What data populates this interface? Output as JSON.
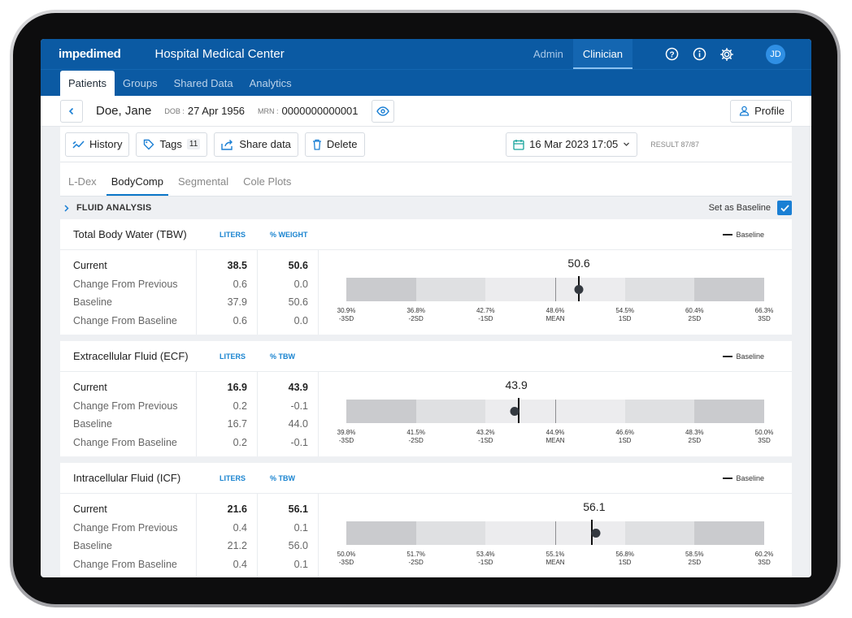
{
  "app": {
    "logo": "impedimed",
    "org": "Hospital Medical Center",
    "roles": [
      "Admin",
      "Clinician"
    ],
    "active_role": "Clinician",
    "avatar_initials": "JD",
    "accent": "#0b5aa3"
  },
  "nav": {
    "tabs": [
      "Patients",
      "Groups",
      "Shared Data",
      "Analytics"
    ],
    "active": "Patients"
  },
  "patient": {
    "name": "Doe, Jane",
    "dob_label": "DOB :",
    "dob": "27 Apr 1956",
    "mrn_label": "MRN :",
    "mrn": "0000000000001",
    "profile_label": "Profile"
  },
  "toolbar": {
    "history": "History",
    "tags": "Tags",
    "tags_count": "11",
    "share": "Share data",
    "delete": "Delete",
    "date": "16 Mar 2023 17:05",
    "result": "RESULT 87/87"
  },
  "subtabs": [
    "L-Dex",
    "BodyComp",
    "Segmental",
    "Cole Plots"
  ],
  "subtab_active": "BodyComp",
  "fluid": {
    "title": "FLUID ANALYSIS",
    "baseline_label": "Set as Baseline",
    "baseline_checked": true
  },
  "row_labels": [
    "Current",
    "Change From Previous",
    "Baseline",
    "Change From Baseline"
  ],
  "legend_label": "Baseline",
  "cards": [
    {
      "title": "Total Body Water (TBW)",
      "col1": "LITERS",
      "col2": "% WEIGHT",
      "v1": [
        "38.5",
        "0.6",
        "37.9",
        "0.6"
      ],
      "v2": [
        "50.6",
        "0.0",
        "50.6",
        "0.0"
      ],
      "gauge_value": "50.6",
      "current": 50.6,
      "baseline": 50.6,
      "ticks": [
        {
          "v": "30.9%",
          "l": "-3SD"
        },
        {
          "v": "36.8%",
          "l": "-2SD"
        },
        {
          "v": "42.7%",
          "l": "-1SD"
        },
        {
          "v": "48.6%",
          "l": "MEAN"
        },
        {
          "v": "54.5%",
          "l": "1SD"
        },
        {
          "v": "60.4%",
          "l": "2SD"
        },
        {
          "v": "66.3%",
          "l": "3SD"
        }
      ],
      "range": [
        30.9,
        66.3
      ]
    },
    {
      "title": "Extracellular Fluid (ECF)",
      "col1": "LITERS",
      "col2": "% TBW",
      "v1": [
        "16.9",
        "0.2",
        "16.7",
        "0.2"
      ],
      "v2": [
        "43.9",
        "-0.1",
        "44.0",
        "-0.1"
      ],
      "gauge_value": "43.9",
      "current": 43.9,
      "baseline": 44.0,
      "ticks": [
        {
          "v": "39.8%",
          "l": "-3SD"
        },
        {
          "v": "41.5%",
          "l": "-2SD"
        },
        {
          "v": "43.2%",
          "l": "-1SD"
        },
        {
          "v": "44.9%",
          "l": "MEAN"
        },
        {
          "v": "46.6%",
          "l": "1SD"
        },
        {
          "v": "48.3%",
          "l": "2SD"
        },
        {
          "v": "50.0%",
          "l": "3SD"
        }
      ],
      "range": [
        39.8,
        50.0
      ]
    },
    {
      "title": "Intracellular Fluid (ICF)",
      "col1": "LITERS",
      "col2": "% TBW",
      "v1": [
        "21.6",
        "0.4",
        "21.2",
        "0.4"
      ],
      "v2": [
        "56.1",
        "0.1",
        "56.0",
        "0.1"
      ],
      "gauge_value": "56.1",
      "current": 56.1,
      "baseline": 56.0,
      "ticks": [
        {
          "v": "50.0%",
          "l": "-3SD"
        },
        {
          "v": "51.7%",
          "l": "-2SD"
        },
        {
          "v": "53.4%",
          "l": "-1SD"
        },
        {
          "v": "55.1%",
          "l": "MEAN"
        },
        {
          "v": "56.8%",
          "l": "1SD"
        },
        {
          "v": "58.5%",
          "l": "2SD"
        },
        {
          "v": "60.2%",
          "l": "3SD"
        }
      ],
      "range": [
        50.0,
        60.2
      ]
    }
  ]
}
